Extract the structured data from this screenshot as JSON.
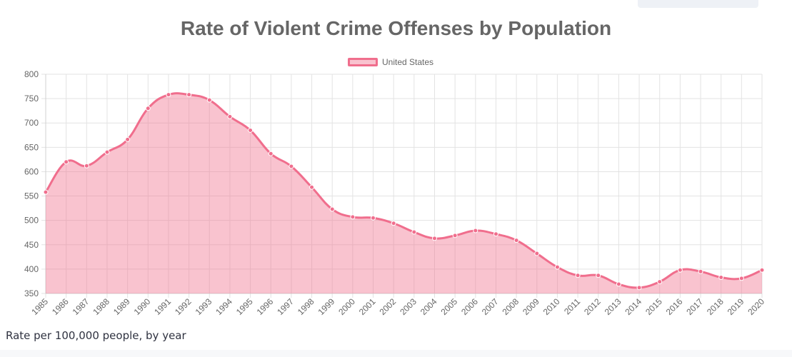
{
  "chart_data": {
    "type": "area",
    "title": "Rate of Violent Crime Offenses by Population",
    "legend": {
      "position": "top-center",
      "entries": [
        "United States"
      ]
    },
    "series": [
      {
        "name": "United States",
        "color": "#f06e8d",
        "fill": "rgba(241,112,140,0.42)",
        "values": [
          558,
          620,
          612,
          640,
          666,
          730,
          758,
          758,
          747,
          713,
          685,
          637,
          611,
          568,
          523,
          507,
          505,
          494,
          476,
          463,
          469,
          479,
          472,
          459,
          432,
          404,
          387,
          387,
          369,
          362,
          374,
          398,
          395,
          383,
          381,
          398
        ]
      }
    ],
    "categories": [
      "1985",
      "1986",
      "1987",
      "1988",
      "1989",
      "1990",
      "1991",
      "1992",
      "1993",
      "1994",
      "1995",
      "1996",
      "1997",
      "1998",
      "1999",
      "2000",
      "2001",
      "2002",
      "2003",
      "2004",
      "2005",
      "2006",
      "2007",
      "2008",
      "2009",
      "2010",
      "2011",
      "2012",
      "2013",
      "2014",
      "2015",
      "2016",
      "2017",
      "2018",
      "2019",
      "2020"
    ],
    "ylim": [
      350,
      800
    ],
    "yticks": [
      350,
      400,
      450,
      500,
      550,
      600,
      650,
      700,
      750,
      800
    ],
    "grid": true
  },
  "caption": "Rate per 100,000 people, by year"
}
